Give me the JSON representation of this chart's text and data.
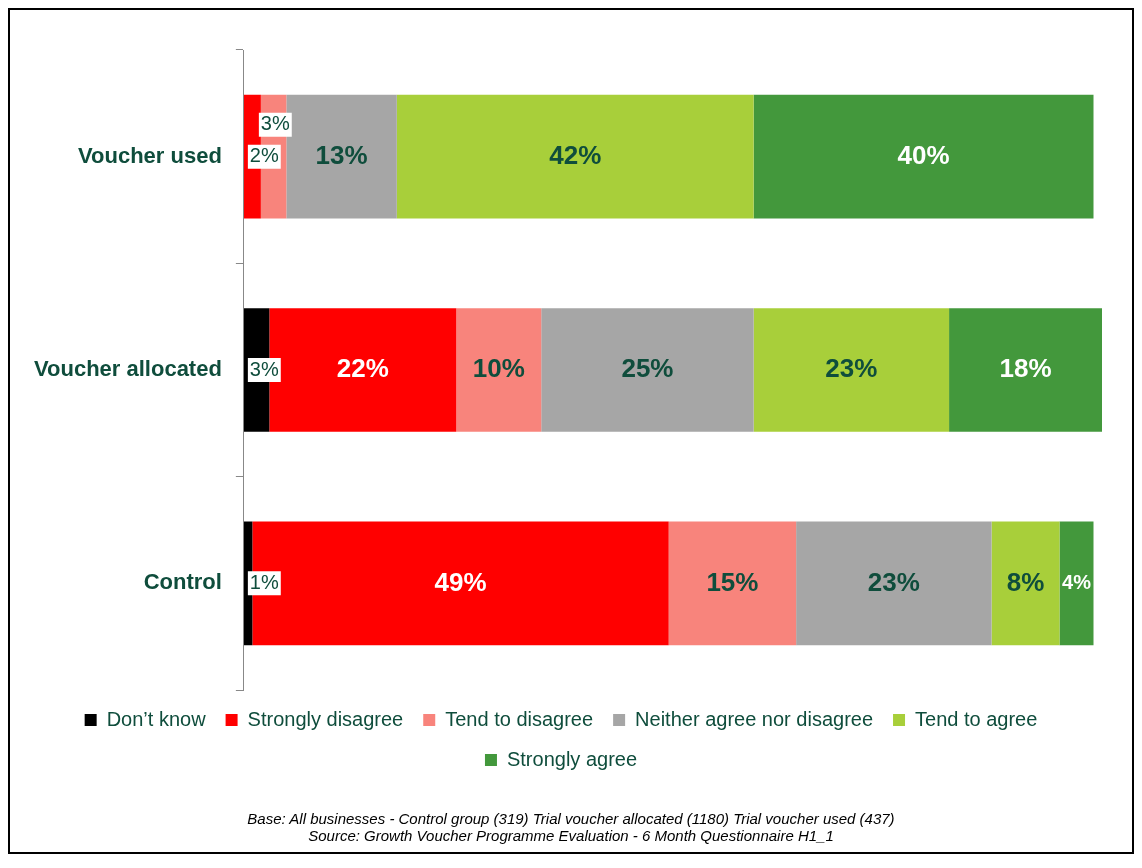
{
  "chart_data": {
    "type": "bar",
    "orientation": "horizontal",
    "stacked": true,
    "categories": [
      "Voucher used",
      "Voucher allocated",
      "Control"
    ],
    "xlim": [
      0,
      101
    ],
    "tick_labels": "y",
    "grid": false,
    "legend": "bottom",
    "series": [
      {
        "name": "Don’t know",
        "color": "#000000",
        "values": [
          null,
          3,
          1
        ],
        "value_labels": [
          null,
          "3%",
          "1%"
        ]
      },
      {
        "name": "Strongly disagree",
        "color": "#ff0000",
        "values": [
          2,
          22,
          49
        ],
        "value_labels": [
          "2%",
          "22%",
          "49%"
        ]
      },
      {
        "name": "Tend to disagree",
        "color": "#f8847c",
        "values": [
          3,
          10,
          15
        ],
        "value_labels": [
          "3%",
          "10%",
          "15%"
        ]
      },
      {
        "name": "Neither agree nor disagree",
        "color": "#a6a6a6",
        "values": [
          13,
          25,
          23
        ],
        "value_labels": [
          "13%",
          "25%",
          "23%"
        ]
      },
      {
        "name": "Tend to agree",
        "color": "#a8cf3a",
        "values": [
          42,
          23,
          8
        ],
        "value_labels": [
          "42%",
          "23%",
          "8%"
        ]
      },
      {
        "name": "Strongly agree",
        "color": "#43983c",
        "values": [
          40,
          18,
          4
        ],
        "value_labels": [
          "40%",
          "18%",
          "4%"
        ]
      }
    ],
    "annotations": [
      "Base: All  businesses - Control group (319) Trial  voucher allocated (1180)  Trial voucher used (437)",
      "Source: Growth Voucher Programme Evaluation - 6 Month Questionnaire H1_1"
    ]
  }
}
